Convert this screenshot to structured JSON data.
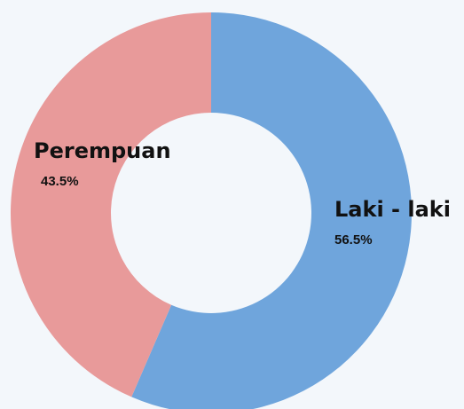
{
  "chart_data": {
    "type": "donut",
    "categories": [
      "Laki - laki",
      "Perempuan"
    ],
    "values": [
      56.5,
      43.5
    ],
    "value_labels": [
      "56.5%",
      "43.5%"
    ],
    "colors": [
      "#6fa5dc",
      "#e89a9a"
    ]
  }
}
